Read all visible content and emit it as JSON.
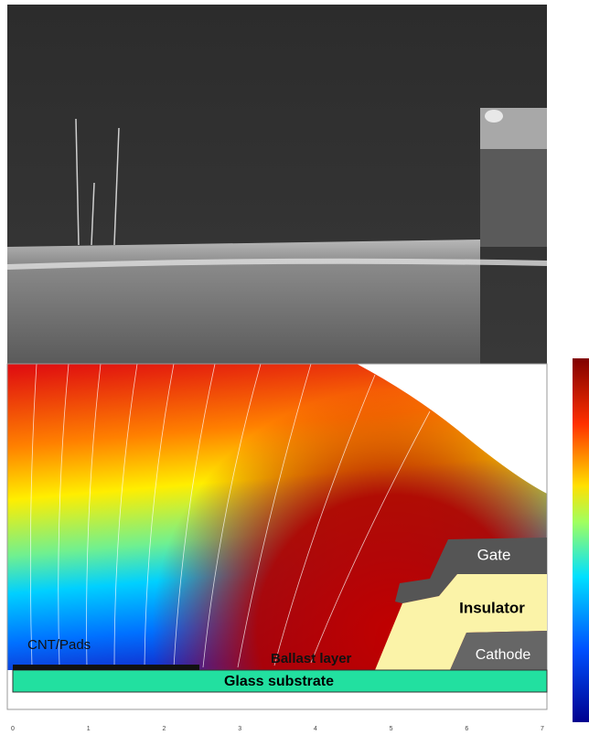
{
  "figure": {
    "labels": {
      "gate": "Gate",
      "insulator": "Insulator",
      "cathode": "Cathode",
      "cnt": "CNT/Pads",
      "ballast": "Ballast layer",
      "substrate": "Glass substrate"
    },
    "x_ticks": [
      0,
      1,
      2,
      3,
      4,
      5,
      6,
      7
    ]
  }
}
